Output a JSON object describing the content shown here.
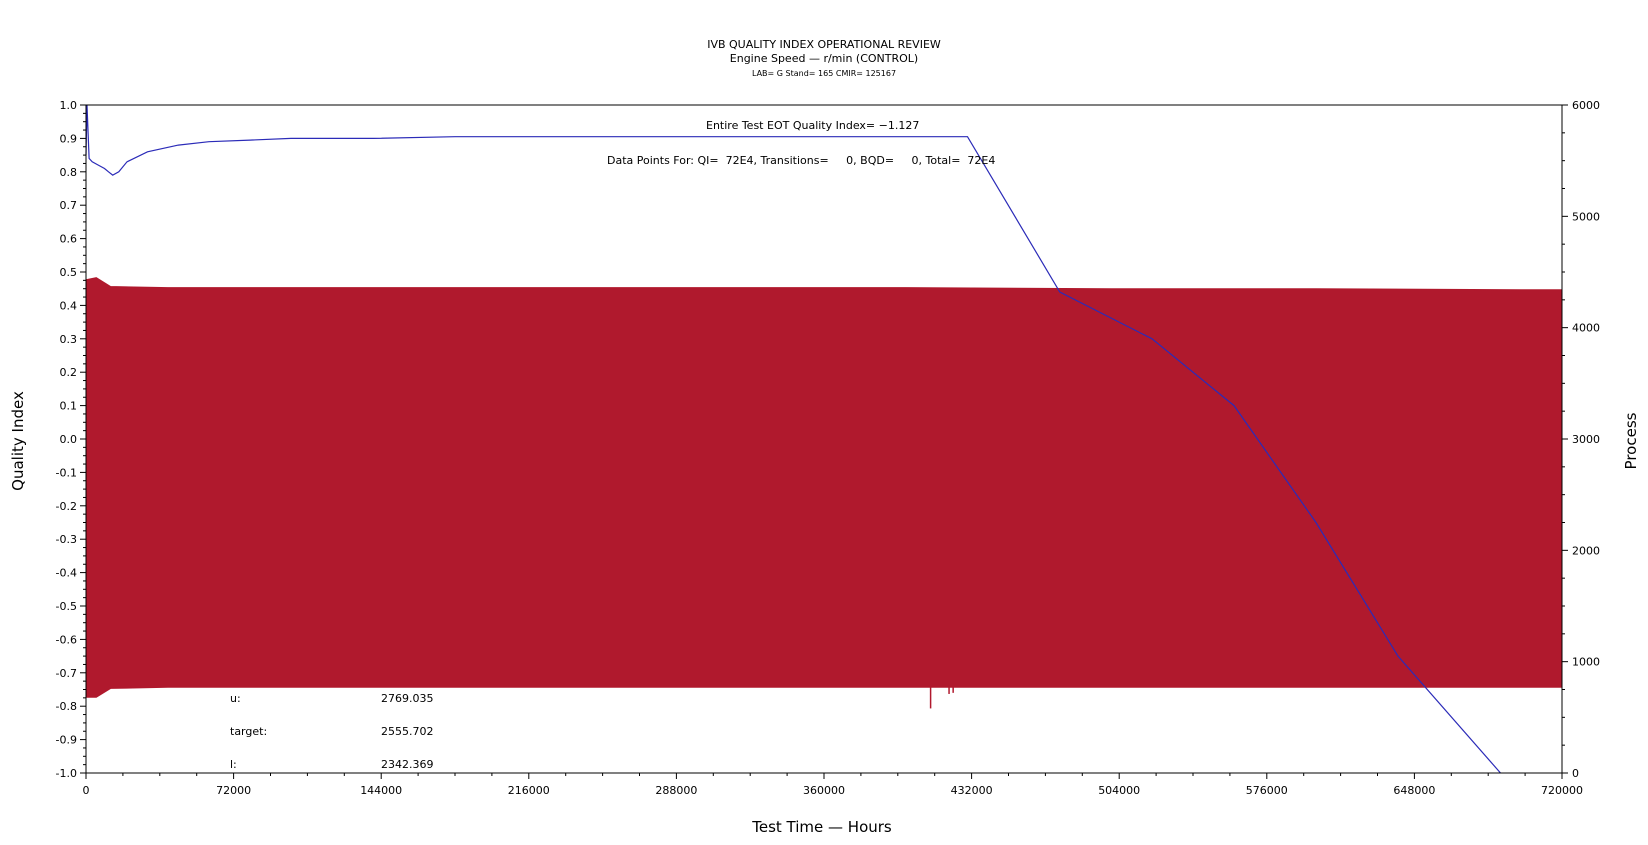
{
  "chart_data": {
    "type": "area",
    "title": "IVB QUALITY INDEX OPERATIONAL REVIEW",
    "subtitle": "Engine Speed — r/min (CONTROL)",
    "subtitle2": "LAB= G Stand= 165 CMIR= 125167",
    "xlabel": "Test Time — Hours",
    "ylabel_left": "Quality Index",
    "ylabel_right": "Process",
    "xlim": [
      0,
      720000
    ],
    "ylim_left": [
      -1.0,
      1.0
    ],
    "ylim_right": [
      0,
      6000
    ],
    "x_ticks": [
      "0",
      "72000",
      "144000",
      "216000",
      "288000",
      "360000",
      "432000",
      "504000",
      "576000",
      "648000",
      "720000"
    ],
    "y_left_ticks": [
      "1.0",
      "0.9",
      "0.8",
      "0.7",
      "0.6",
      "0.5",
      "0.4",
      "0.3",
      "0.2",
      "0.1",
      "0.0",
      "-0.1",
      "-0.2",
      "-0.3",
      "-0.4",
      "-0.5",
      "-0.6",
      "-0.7",
      "-0.8",
      "-0.9",
      "-1.0"
    ],
    "y_right_ticks": [
      "6000",
      "5000",
      "4000",
      "3000",
      "2000",
      "1000",
      "0"
    ],
    "annotations": {
      "eot": "Entire Test EOT Quality Index=  −1.127",
      "datapoints": "Data Points For: QI=  72E4, Transitions=     0, BQD=     0, Total=  72E4"
    },
    "limits": [
      {
        "label": "u:",
        "value": "2769.035"
      },
      {
        "label": "target:",
        "value": "2555.702"
      },
      {
        "label": "l:",
        "value": "2342.369"
      }
    ],
    "series": [
      {
        "role": "quality-index",
        "color": "#2b2bb8",
        "x": [
          0,
          500,
          1500,
          3000,
          6000,
          9000,
          11000,
          13000,
          16000,
          20000,
          30000,
          45000,
          60000,
          80000,
          100000,
          140000,
          180000,
          250000,
          320000,
          400000,
          430000,
          475000,
          520000,
          560000,
          600000,
          640000,
          690000
        ],
        "y": [
          0.85,
          1.0,
          0.84,
          0.83,
          0.82,
          0.81,
          0.8,
          0.79,
          0.8,
          0.83,
          0.86,
          0.88,
          0.89,
          0.895,
          0.9,
          0.9,
          0.905,
          0.905,
          0.905,
          0.905,
          0.905,
          0.44,
          0.3,
          0.1,
          -0.25,
          -0.65,
          -1.0
        ]
      },
      {
        "role": "process-band",
        "color": "#b0192d",
        "x": [
          0,
          5000,
          12000,
          40000,
          100000,
          200000,
          300000,
          400000,
          500000,
          600000,
          700000,
          720000
        ],
        "upper": [
          4430,
          4450,
          4370,
          4360,
          4360,
          4360,
          4360,
          4360,
          4350,
          4350,
          4340,
          4340
        ],
        "lower": [
          680,
          680,
          760,
          770,
          770,
          770,
          770,
          770,
          770,
          770,
          770,
          770
        ],
        "spikes": [
          {
            "x": 412000,
            "y": 580
          },
          {
            "x": 421000,
            "y": 710
          },
          {
            "x": 423000,
            "y": 720
          }
        ]
      }
    ]
  }
}
